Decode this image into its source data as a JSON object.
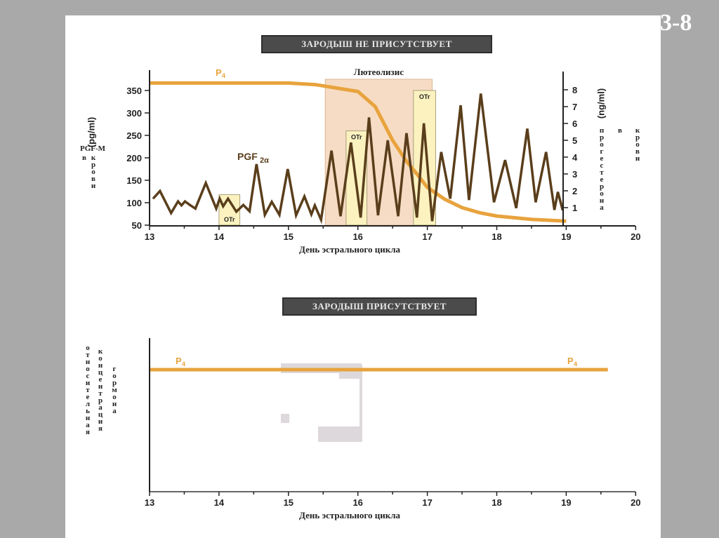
{
  "slide_number": "3-8",
  "chart_data": [
    {
      "type": "line",
      "title": "ЗАРОДЫШ НЕ ПРИСУТСТВУЕТ",
      "xlabel": "День эстрального цикла",
      "ylabel_left_unit": "(pg/ml)",
      "ylabel_left": "PGF-M",
      "ylabel_left_sub1": "в",
      "ylabel_left_sub2": "крови",
      "ylabel_right_unit": "(ng/ml)",
      "ylabel_right": "прогестерона",
      "ylabel_right_sub1": "в",
      "ylabel_right_sub2": "крови",
      "xlim": [
        13,
        20
      ],
      "ylim_left": [
        50,
        350
      ],
      "ylim_right": [
        0,
        8
      ],
      "x_ticks": [
        "13",
        "14",
        "15",
        "16",
        "17",
        "18",
        "19",
        "20"
      ],
      "y_ticks_left": [
        "50",
        "100",
        "150",
        "200",
        "250",
        "300",
        "350"
      ],
      "y_ticks_right": [
        "1",
        "2",
        "3",
        "4",
        "5",
        "6",
        "7",
        "8"
      ],
      "colors": {
        "pgf": "#5a3e1b",
        "p4": "#e8a33d",
        "luteolysis": "#f6dcc4",
        "otr": "#fbf2c0"
      },
      "annotations": {
        "luteolysis": "Лютеолизис",
        "otr": "OTr",
        "pgf_label": "PGF",
        "pgf_sub": "2α",
        "p4_label": "P",
        "p4_sub": "4"
      },
      "regions": {
        "luteolysis": [
          15.53,
          17.07
        ],
        "otr": [
          [
            14.0,
            14.3,
            118
          ],
          [
            15.83,
            16.13,
            260
          ],
          [
            16.8,
            17.12,
            350
          ]
        ]
      },
      "series": [
        {
          "name": "PGF2α",
          "axis": "left",
          "x": [
            13.05,
            13.15,
            13.31,
            13.41,
            13.46,
            13.51,
            13.58,
            13.66,
            13.81,
            13.96,
            14.01,
            14.06,
            14.13,
            14.25,
            14.35,
            14.44,
            14.54,
            14.66,
            14.76,
            14.87,
            14.99,
            15.11,
            15.23,
            15.33,
            15.38,
            15.47,
            15.62,
            15.75,
            15.9,
            16.04,
            16.16,
            16.29,
            16.43,
            16.58,
            16.7,
            16.85,
            16.95,
            17.07,
            17.2,
            17.33,
            17.48,
            17.6,
            17.77,
            17.96,
            18.12,
            18.28,
            18.44,
            18.56,
            18.71,
            18.83,
            18.88,
            18.95
          ],
          "y": [
            109,
            126,
            77,
            103,
            94,
            103,
            95,
            87,
            144,
            87,
            109,
            92,
            109,
            80,
            95,
            81,
            186,
            73,
            102,
            73,
            175,
            72,
            114,
            74,
            94,
            62,
            216,
            70,
            234,
            67,
            290,
            72,
            239,
            70,
            255,
            67,
            277,
            59,
            213,
            109,
            317,
            106,
            343,
            101,
            195,
            88,
            265,
            101,
            213,
            84,
            124,
            83
          ]
        },
        {
          "name": "P4",
          "axis": "right",
          "x": [
            13,
            13.5,
            14,
            14.5,
            15,
            15.4,
            15.7,
            16.0,
            16.25,
            16.5,
            16.7,
            16.85,
            17.0,
            17.25,
            17.5,
            17.75,
            18.0,
            18.5,
            19.0
          ],
          "y": [
            8.4,
            8.4,
            8.4,
            8.4,
            8.4,
            8.3,
            8.1,
            7.9,
            7.0,
            5.0,
            3.75,
            3.0,
            2.2,
            1.5,
            1.0,
            0.7,
            0.5,
            0.3,
            0.2
          ]
        }
      ]
    },
    {
      "type": "line",
      "title": "ЗАРОДЫШ ПРИСУТСТВУЕТ",
      "xlabel": "День эстрального цикла",
      "ylabel_parts": [
        "относительная",
        "концентрация",
        "гормона"
      ],
      "xlim": [
        13,
        20
      ],
      "x_ticks": [
        "13",
        "14",
        "15",
        "16",
        "17",
        "18",
        "19",
        "20"
      ],
      "annotations": {
        "p4_label": "P",
        "p4_sub": "4"
      },
      "series": [
        {
          "name": "P4",
          "x": [
            13,
            19.6
          ],
          "y": [
            1,
            1
          ]
        }
      ]
    }
  ]
}
